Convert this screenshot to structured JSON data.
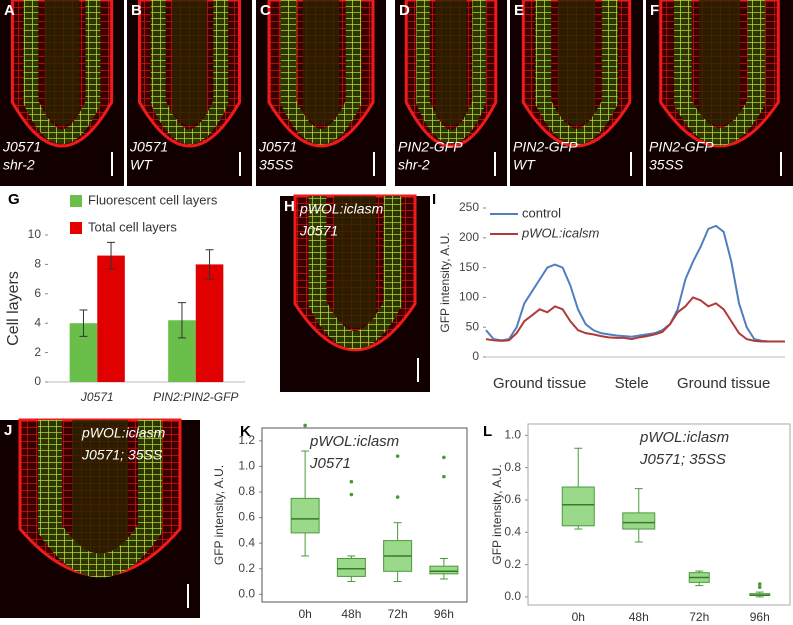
{
  "panels": [
    {
      "letter": "A",
      "caption": [
        "J0571",
        "shr-2"
      ]
    },
    {
      "letter": "B",
      "caption": [
        "J0571",
        "WT"
      ]
    },
    {
      "letter": "C",
      "caption": [
        "J0571",
        "35SS"
      ]
    },
    {
      "letter": "D",
      "caption": [
        "PIN2-GFP",
        "shr-2"
      ]
    },
    {
      "letter": "E",
      "caption": [
        "PIN2-GFP",
        "WT"
      ]
    },
    {
      "letter": "F",
      "caption": [
        "PIN2-GFP",
        "35SS"
      ]
    },
    {
      "letter": "H",
      "caption": [
        "pWOL:iclasm",
        "J0571"
      ]
    },
    {
      "letter": "J",
      "caption": [
        "pWOL:iclasm",
        "J0571; 35SS"
      ]
    }
  ],
  "chart_data": [
    {
      "type": "bar",
      "panel": "G",
      "ylabel": "Cell layers",
      "categories": [
        "J0571",
        "PIN2:PIN2-GFP"
      ],
      "series": [
        {
          "name": "Fluorescent cell layers",
          "color": "#6abf4b",
          "values": [
            4,
            4.2
          ],
          "errors": [
            0.9,
            1.2
          ]
        },
        {
          "name": "Total cell layers",
          "color": "#e00000",
          "values": [
            8.6,
            8.0
          ],
          "errors": [
            0.9,
            1.0
          ]
        }
      ],
      "ylim": [
        0,
        10
      ],
      "yticks": [
        0,
        2,
        4,
        6,
        8,
        10
      ]
    },
    {
      "type": "line",
      "panel": "I",
      "ylabel": "GFP intensity, A.U.",
      "categories": [
        null,
        null,
        null,
        null,
        null,
        null,
        null,
        "Ground tissue",
        null,
        null,
        null,
        null,
        null,
        null,
        null,
        null,
        null,
        null,
        null,
        "Stele",
        null,
        null,
        null,
        null,
        null,
        null,
        null,
        null,
        null,
        null,
        null,
        "Ground tissue",
        null,
        null,
        null,
        null,
        null,
        null,
        null,
        null
      ],
      "series": [
        {
          "name": "control",
          "color": "#4f7fc0",
          "values": [
            45,
            30,
            28,
            30,
            50,
            90,
            110,
            130,
            150,
            155,
            150,
            120,
            80,
            55,
            45,
            40,
            38,
            36,
            35,
            34,
            36,
            38,
            40,
            45,
            55,
            80,
            130,
            160,
            185,
            215,
            220,
            210,
            160,
            90,
            50,
            30,
            27,
            26,
            26,
            26
          ]
        },
        {
          "name": "pWOL:icalsm",
          "color": "#b03a3a",
          "values": [
            30,
            28,
            27,
            28,
            40,
            60,
            70,
            80,
            75,
            85,
            80,
            60,
            45,
            40,
            38,
            35,
            33,
            32,
            32,
            30,
            33,
            35,
            38,
            42,
            55,
            75,
            85,
            100,
            95,
            85,
            90,
            80,
            60,
            40,
            30,
            27,
            26,
            26,
            26,
            26
          ]
        }
      ],
      "ylim": [
        0,
        250
      ],
      "yticks": [
        0,
        50,
        100,
        150,
        200,
        250
      ]
    },
    {
      "type": "box",
      "panel": "K",
      "ylabel": "GFP intensity, A.U.",
      "annotation": [
        "pWOL:iclasm",
        "J0571"
      ],
      "categories": [
        "0h",
        "48h",
        "72h",
        "96h"
      ],
      "color": "#9bd98a",
      "boxes": [
        {
          "min": 0.3,
          "q1": 0.48,
          "median": 0.59,
          "q3": 0.75,
          "max": 1.12,
          "outliers": [
            1.32
          ]
        },
        {
          "min": 0.1,
          "q1": 0.14,
          "median": 0.2,
          "q3": 0.28,
          "max": 0.3,
          "outliers": [
            0.78,
            0.88
          ]
        },
        {
          "min": 0.1,
          "q1": 0.18,
          "median": 0.3,
          "q3": 0.42,
          "max": 0.56,
          "outliers": [
            0.76,
            1.08
          ]
        },
        {
          "min": 0.12,
          "q1": 0.16,
          "median": 0.18,
          "q3": 0.22,
          "max": 0.28,
          "outliers": [
            0.92,
            1.07
          ]
        }
      ],
      "ylim": [
        -0.06,
        1.3
      ],
      "yticks": [
        {
          "value": 0,
          "label": "0.0"
        },
        0.2,
        0.4,
        0.6,
        0.8,
        {
          "value": 1,
          "label": "1.0"
        },
        1.2
      ]
    },
    {
      "type": "box",
      "panel": "L",
      "ylabel": "GFP intensity, A.U.",
      "annotation": [
        "pWOL:iclasm",
        "J0571; 35SS"
      ],
      "categories": [
        "0h",
        "48h",
        "72h",
        "96h"
      ],
      "color": "#9bd98a",
      "boxes": [
        {
          "min": 0.42,
          "q1": 0.44,
          "median": 0.57,
          "q3": 0.68,
          "max": 0.92,
          "outliers": []
        },
        {
          "min": 0.34,
          "q1": 0.42,
          "median": 0.46,
          "q3": 0.52,
          "max": 0.67,
          "outliers": []
        },
        {
          "min": 0.07,
          "q1": 0.09,
          "median": 0.12,
          "q3": 0.15,
          "max": 0.16,
          "outliers": []
        },
        {
          "min": 0,
          "q1": 0.01,
          "median": 0.01,
          "q3": 0.02,
          "max": 0.03,
          "outliers": [
            0.06,
            0.08
          ]
        }
      ],
      "ylim": [
        -0.05,
        1.07
      ],
      "yticks": [
        {
          "value": 0,
          "label": "0.0"
        },
        0.2,
        0.4,
        0.6,
        0.8,
        {
          "value": 1,
          "label": "1.0"
        }
      ]
    }
  ]
}
